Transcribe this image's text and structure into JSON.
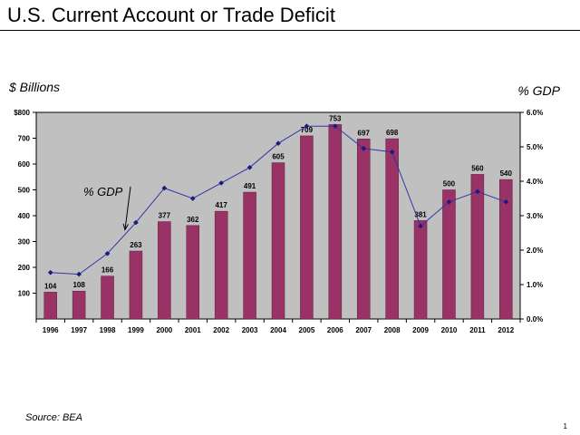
{
  "title": "U.S. Current Account or Trade Deficit",
  "left_unit_label": "$ Billions",
  "right_unit_label": "% GDP",
  "source": "Source:  BEA",
  "page_number": "1",
  "colors": {
    "bar": "#993366",
    "line": "#3333aa",
    "plot_bg": "#c0c0c0"
  },
  "chart_data": {
    "type": "bar",
    "title": "U.S. Current Account or Trade Deficit",
    "categories": [
      "1996",
      "1997",
      "1998",
      "1999",
      "2000",
      "2001",
      "2002",
      "2003",
      "2004",
      "2005",
      "2006",
      "2007",
      "2008",
      "2009",
      "2010",
      "2011",
      "2012"
    ],
    "series": [
      {
        "type": "bar",
        "axis": "left",
        "values": [
          104,
          108,
          166,
          263,
          377,
          362,
          417,
          491,
          605,
          709,
          753,
          697,
          698,
          381,
          500,
          560,
          540
        ]
      },
      {
        "name": "% GDP",
        "type": "line",
        "axis": "right",
        "values": [
          1.35,
          1.3,
          1.9,
          2.8,
          3.8,
          3.5,
          3.95,
          4.4,
          5.1,
          5.6,
          5.6,
          4.95,
          4.85,
          2.7,
          3.4,
          3.7,
          3.4
        ]
      }
    ],
    "left_axis": {
      "ylim": [
        0,
        800
      ],
      "ticks": [
        100,
        200,
        300,
        400,
        500,
        600,
        700,
        800
      ],
      "tick_labels": [
        "100",
        "200",
        "300",
        "400",
        "500",
        "600",
        "700",
        "$800"
      ]
    },
    "right_axis": {
      "ylim": [
        0,
        6
      ],
      "ticks": [
        0,
        1,
        2,
        3,
        4,
        5,
        6
      ],
      "tick_labels": [
        "0.0%",
        "1.0%",
        "2.0%",
        "3.0%",
        "4.0%",
        "5.0%",
        "6.0%"
      ]
    },
    "annotation": {
      "text": "% GDP",
      "points_to": "1999"
    },
    "grid": false,
    "legend": "none"
  }
}
